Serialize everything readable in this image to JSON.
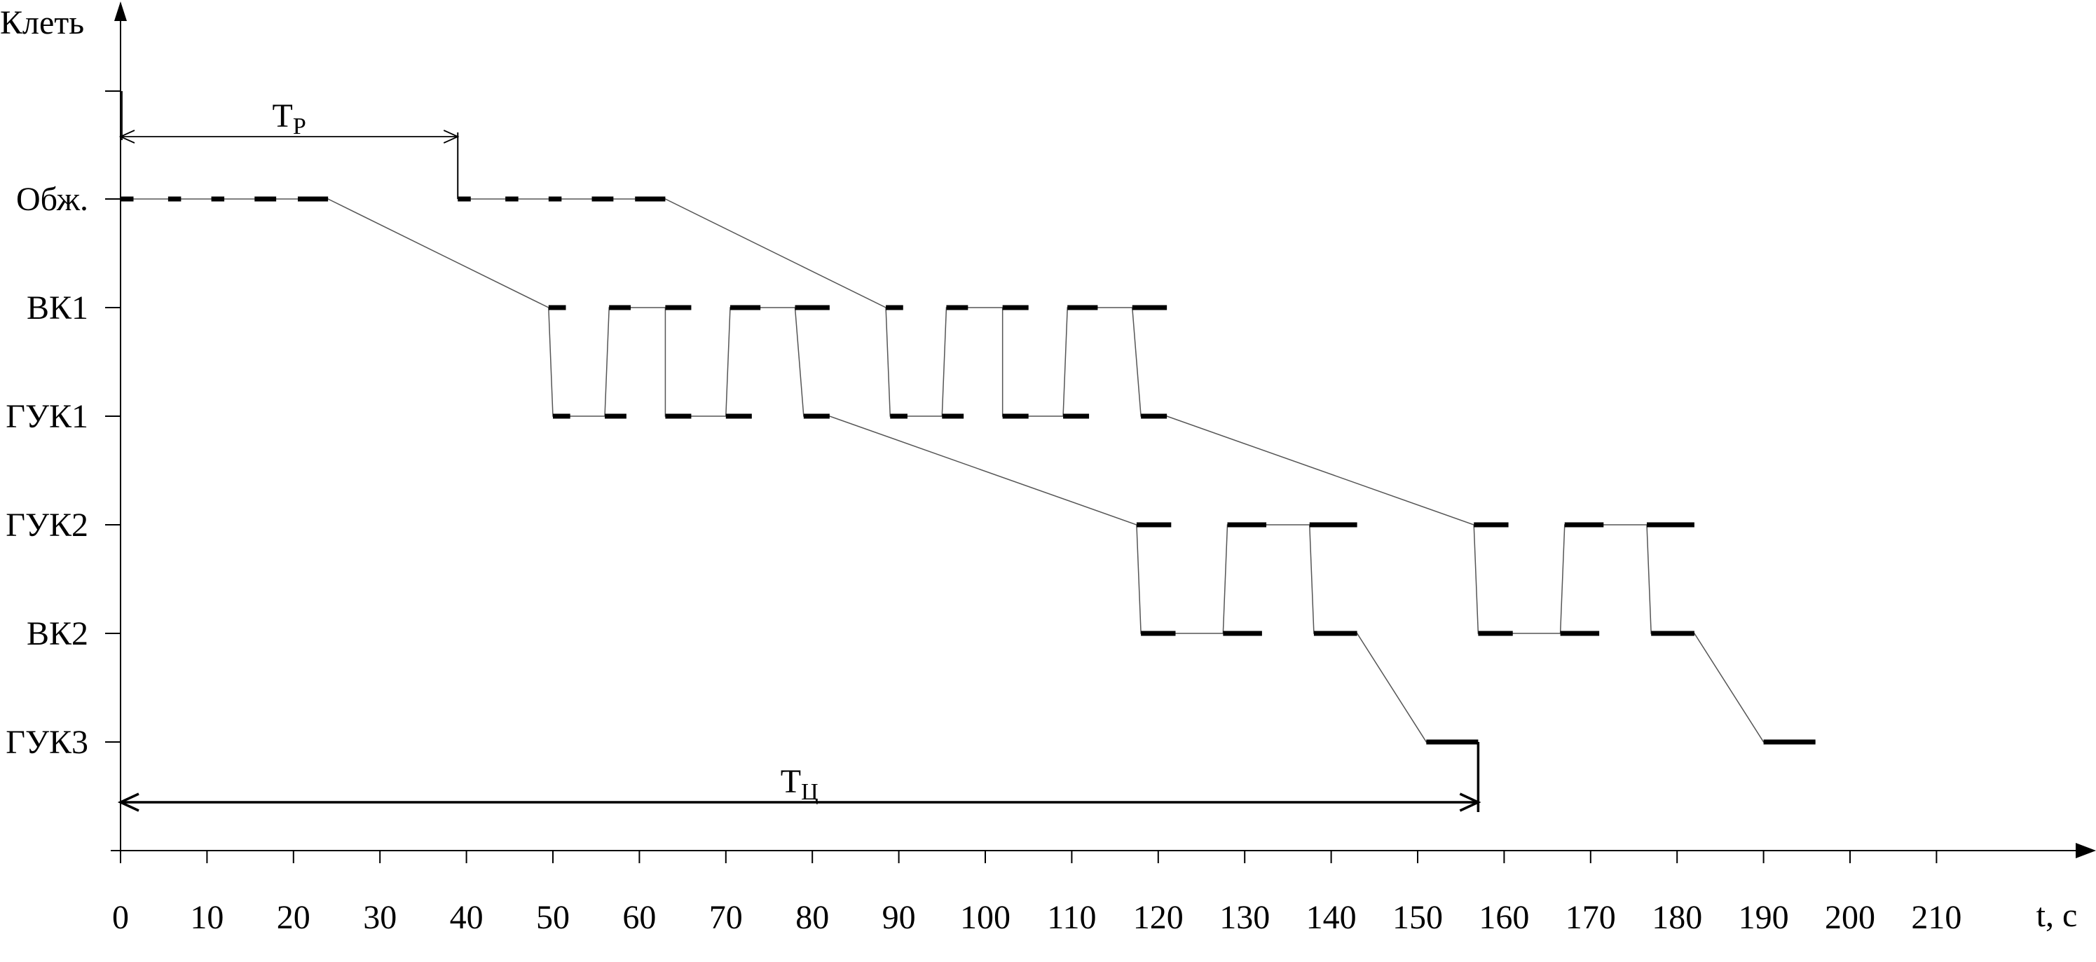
{
  "chart_data": {
    "type": "line",
    "title": "",
    "xlabel": "t, c",
    "ylabel": "Клеть",
    "xlim": [
      0,
      210
    ],
    "x_ticks": [
      0,
      10,
      20,
      30,
      40,
      50,
      60,
      70,
      80,
      90,
      100,
      110,
      120,
      130,
      140,
      150,
      160,
      170,
      180,
      190,
      200,
      210
    ],
    "x_tick_labels": [
      "0",
      "10",
      "20",
      "30",
      "40",
      "50",
      "60",
      "70",
      "80",
      "90",
      "100",
      "110",
      "120",
      "130",
      "140",
      "150",
      "160",
      "170",
      "180",
      "190",
      "200",
      "210"
    ],
    "stands": [
      "Обж.",
      "ВК1",
      "ГУК1",
      "ГУК2",
      "ВК2",
      "ГУК3"
    ],
    "grid": false,
    "series": [
      {
        "segments": [
          {
            "stand": "Обж.",
            "x0": 0,
            "x1": 1.5
          },
          {
            "stand": "Обж.",
            "x0": 5.5,
            "x1": 7
          },
          {
            "stand": "Обж.",
            "x0": 10.5,
            "x1": 12
          },
          {
            "stand": "Обж.",
            "x0": 15.5,
            "x1": 18
          },
          {
            "stand": "Обж.",
            "x0": 20.5,
            "x1": 24
          },
          {
            "stand": "ВК1",
            "x0": 49.5,
            "x1": 51.5
          },
          {
            "stand": "ГУК1",
            "x0": 50,
            "x1": 52
          },
          {
            "stand": "ГУК1",
            "x0": 56,
            "x1": 58.5
          },
          {
            "stand": "ВК1",
            "x0": 56.5,
            "x1": 59
          },
          {
            "stand": "ВК1",
            "x0": 63,
            "x1": 66
          },
          {
            "stand": "ГУК1",
            "x0": 63,
            "x1": 66
          },
          {
            "stand": "ГУК1",
            "x0": 70,
            "x1": 73
          },
          {
            "stand": "ВК1",
            "x0": 70.5,
            "x1": 74
          },
          {
            "stand": "ВК1",
            "x0": 78,
            "x1": 82
          },
          {
            "stand": "ГУК1",
            "x0": 79,
            "x1": 82
          },
          {
            "stand": "ГУК2",
            "x0": 117.5,
            "x1": 121.5
          },
          {
            "stand": "ВК2",
            "x0": 118,
            "x1": 122
          },
          {
            "stand": "ВК2",
            "x0": 127.5,
            "x1": 132
          },
          {
            "stand": "ГУК2",
            "x0": 128,
            "x1": 132.5
          },
          {
            "stand": "ГУК2",
            "x0": 137.5,
            "x1": 143
          },
          {
            "stand": "ВК2",
            "x0": 138,
            "x1": 143
          },
          {
            "stand": "ГУК3",
            "x0": 151,
            "x1": 157
          }
        ],
        "connectors": [
          [
            [
              0,
              "Обж."
            ],
            [
              24,
              "Обж."
            ],
            [
              49.5,
              "ВК1"
            ],
            [
              50,
              "ГУК1"
            ],
            [
              56,
              "ГУК1"
            ],
            [
              56.5,
              "ВК1"
            ],
            [
              63,
              "ВК1"
            ],
            [
              63,
              "ГУК1"
            ],
            [
              70,
              "ГУК1"
            ],
            [
              70.5,
              "ВК1"
            ],
            [
              78,
              "ВК1"
            ],
            [
              79,
              "ГУК1"
            ],
            [
              82,
              "ГУК1"
            ],
            [
              117.5,
              "ГУК2"
            ],
            [
              118,
              "ВК2"
            ],
            [
              127.5,
              "ВК2"
            ],
            [
              128,
              "ГУК2"
            ],
            [
              137.5,
              "ГУК2"
            ],
            [
              138,
              "ВК2"
            ],
            [
              143,
              "ВК2"
            ],
            [
              151,
              "ГУК3"
            ],
            [
              157,
              "ГУК3"
            ]
          ]
        ]
      },
      {
        "segments": [
          {
            "stand": "Обж.",
            "x0": 39,
            "x1": 40.5
          },
          {
            "stand": "Обж.",
            "x0": 44.5,
            "x1": 46
          },
          {
            "stand": "Обж.",
            "x0": 49.5,
            "x1": 51
          },
          {
            "stand": "Обж.",
            "x0": 54.5,
            "x1": 57
          },
          {
            "stand": "Обж.",
            "x0": 59.5,
            "x1": 63
          },
          {
            "stand": "ВК1",
            "x0": 88.5,
            "x1": 90.5
          },
          {
            "stand": "ГУК1",
            "x0": 89,
            "x1": 91
          },
          {
            "stand": "ГУК1",
            "x0": 95,
            "x1": 97.5
          },
          {
            "stand": "ВК1",
            "x0": 95.5,
            "x1": 98
          },
          {
            "stand": "ВК1",
            "x0": 102,
            "x1": 105
          },
          {
            "stand": "ГУК1",
            "x0": 102,
            "x1": 105
          },
          {
            "stand": "ГУК1",
            "x0": 109,
            "x1": 112
          },
          {
            "stand": "ВК1",
            "x0": 109.5,
            "x1": 113
          },
          {
            "stand": "ВК1",
            "x0": 117,
            "x1": 121
          },
          {
            "stand": "ГУК1",
            "x0": 118,
            "x1": 121
          },
          {
            "stand": "ГУК2",
            "x0": 156.5,
            "x1": 160.5
          },
          {
            "stand": "ВК2",
            "x0": 157,
            "x1": 161
          },
          {
            "stand": "ВК2",
            "x0": 166.5,
            "x1": 171
          },
          {
            "stand": "ГУК2",
            "x0": 167,
            "x1": 171.5
          },
          {
            "stand": "ГУК2",
            "x0": 176.5,
            "x1": 182
          },
          {
            "stand": "ВК2",
            "x0": 177,
            "x1": 182
          },
          {
            "stand": "ГУК3",
            "x0": 190,
            "x1": 196
          }
        ],
        "connectors": [
          [
            [
              39,
              "Обж."
            ],
            [
              63,
              "Обж."
            ],
            [
              88.5,
              "ВК1"
            ],
            [
              89,
              "ГУК1"
            ],
            [
              95,
              "ГУК1"
            ],
            [
              95.5,
              "ВК1"
            ],
            [
              102,
              "ВК1"
            ],
            [
              102,
              "ГУК1"
            ],
            [
              109,
              "ГУК1"
            ],
            [
              109.5,
              "ВК1"
            ],
            [
              117,
              "ВК1"
            ],
            [
              118,
              "ГУК1"
            ],
            [
              121,
              "ГУК1"
            ],
            [
              156.5,
              "ГУК2"
            ],
            [
              157,
              "ВК2"
            ],
            [
              166.5,
              "ВК2"
            ],
            [
              167,
              "ГУК2"
            ],
            [
              176.5,
              "ГУК2"
            ],
            [
              177,
              "ВК2"
            ],
            [
              182,
              "ВК2"
            ],
            [
              190,
              "ГУК3"
            ],
            [
              196,
              "ГУК3"
            ]
          ]
        ]
      }
    ],
    "annotations": [
      {
        "main": "T",
        "sub": "P",
        "x0": 0,
        "x1": 39,
        "stroke": "thin"
      },
      {
        "main": "T",
        "sub": "Ц",
        "x0": 0,
        "x1": 157,
        "stroke": "bold"
      }
    ]
  }
}
